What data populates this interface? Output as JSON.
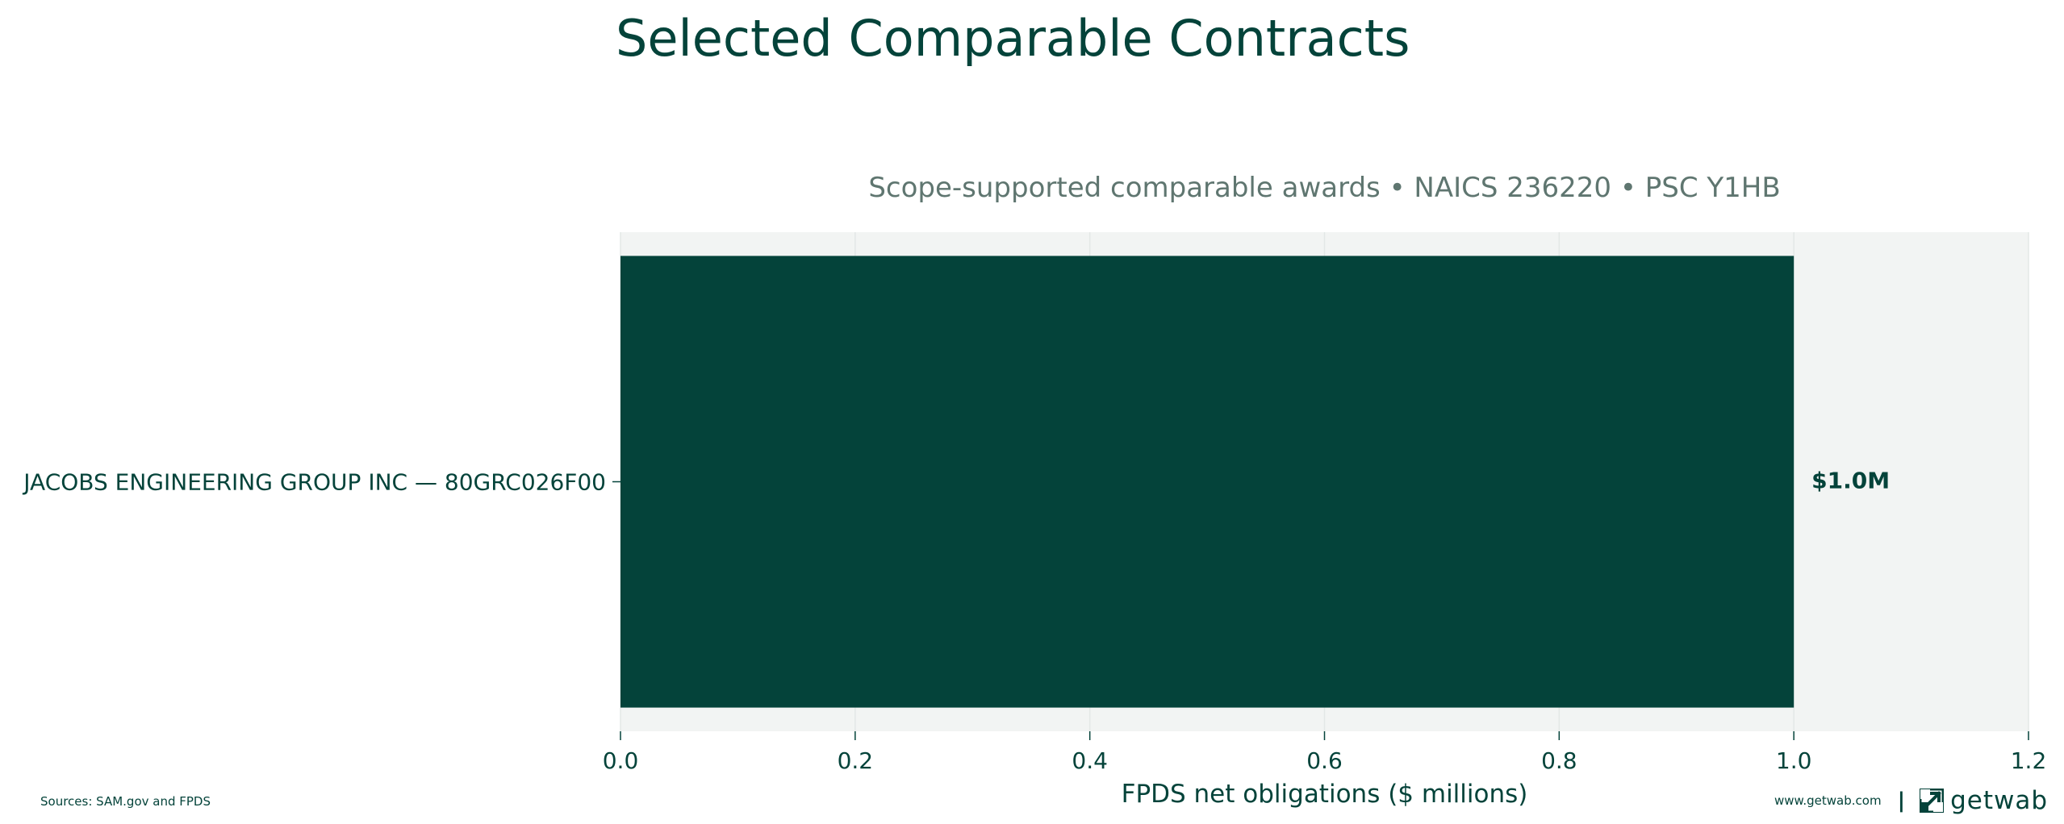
{
  "title": "Selected Comparable Contracts",
  "colors": {
    "bar": "#04433a",
    "plot_background": "#f2f4f3",
    "text": "#04433a",
    "subtitle": "#5f7670",
    "grid": "#e3e8e6"
  },
  "chart_data": {
    "type": "bar",
    "orientation": "horizontal",
    "subtitle": "Scope-supported comparable awards • NAICS 236220 • PSC Y1HB",
    "categories": [
      "JACOBS ENGINEERING GROUP INC — 80GRC026F00"
    ],
    "values": [
      1.0
    ],
    "data_labels": [
      "$1.0M"
    ],
    "xlabel": "FPDS net obligations ($ millions)",
    "ylabel": "",
    "xlim": [
      0,
      1.2
    ],
    "xticks": [
      0.0,
      0.2,
      0.4,
      0.6,
      0.8,
      1.0,
      1.2
    ],
    "xtick_labels": [
      "0.0",
      "0.2",
      "0.4",
      "0.6",
      "0.8",
      "1.0",
      "1.2"
    ],
    "grid": "vertical",
    "legend": "none"
  },
  "footer": {
    "sources": "Sources: SAM.gov and FPDS",
    "url": "www.getwab.com",
    "separator": "|",
    "brand": "getwab",
    "brand_icon": "getwab-logo-icon"
  }
}
